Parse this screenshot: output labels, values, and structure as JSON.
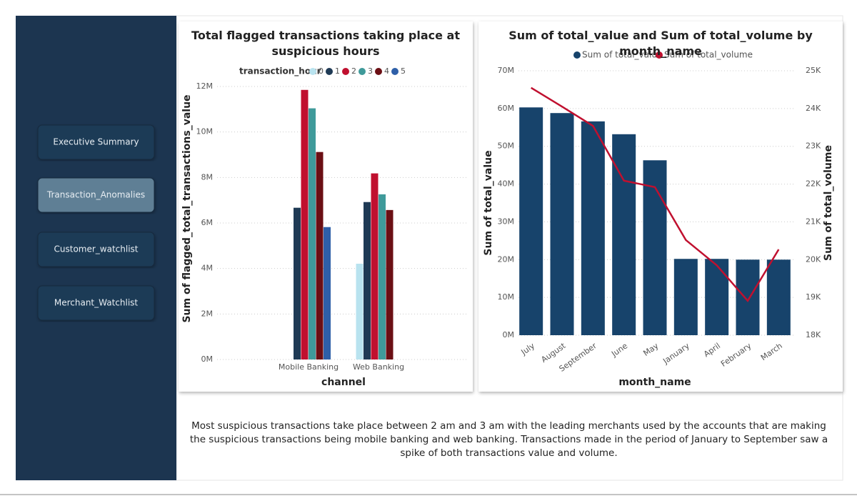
{
  "nav": [
    "Executive Summary",
    "Transaction_Anomalies",
    "Customer_watchlist",
    "Merchant_Watchlist"
  ],
  "active_nav": 1,
  "description": "Most suspicious transactions take place between 2 am and 3 am with the leading merchants used by the accounts that are making the suspicious transactions being mobile banking and web banking. Transactions made in the period of January to September saw a spike of both transactions value and volume.",
  "chart_data": [
    {
      "type": "bar",
      "title": "Total flagged transactions taking place at suspicious hours",
      "legend_title": "transaction_hour",
      "x_label": "channel",
      "y_label": "Sum of flagged_total_transactions_value",
      "categories": [
        "Mobile Banking",
        "Web Banking"
      ],
      "series": [
        {
          "name": "0",
          "color": "#b9e3ef",
          "values": [
            null,
            4210000
          ]
        },
        {
          "name": "1",
          "color": "#1f3a55",
          "values": [
            6670000,
            6920000
          ]
        },
        {
          "name": "2",
          "color": "#c0102f",
          "values": [
            11850000,
            8180000
          ]
        },
        {
          "name": "3",
          "color": "#3f9a9a",
          "values": [
            11040000,
            7260000
          ]
        },
        {
          "name": "4",
          "color": "#6b0f14",
          "values": [
            9120000,
            6570000
          ]
        },
        {
          "name": "5",
          "color": "#2e5fa8",
          "values": [
            5820000,
            null
          ]
        }
      ],
      "ylim": [
        0,
        12000000
      ],
      "yticks": [
        {
          "value": 0,
          "label": "0M"
        },
        {
          "value": 2000000,
          "label": "2M"
        },
        {
          "value": 4000000,
          "label": "4M"
        },
        {
          "value": 6000000,
          "label": "6M"
        },
        {
          "value": 8000000,
          "label": "8M"
        },
        {
          "value": 10000000,
          "label": "10M"
        },
        {
          "value": 12000000,
          "label": "12M"
        }
      ],
      "grid": true
    },
    {
      "type": "combo",
      "title": "Sum of total_value and Sum of total_volume by month_name",
      "x_label": "month_name",
      "y_label": "Sum of total_value",
      "y2_label": "Sum of total_volume",
      "categories": [
        "July",
        "August",
        "September",
        "June",
        "May",
        "January",
        "April",
        "February",
        "March"
      ],
      "series": [
        {
          "name": "Sum of total_value",
          "color": "#17436b",
          "mark": "bar",
          "values": [
            60300000,
            58800000,
            56600000,
            53200000,
            46300000,
            20200000,
            20200000,
            20000000,
            20000000
          ]
        },
        {
          "name": "Sum of total_volume",
          "color": "#c0102f",
          "mark": "line",
          "axis": "y2",
          "values": [
            24550,
            24050,
            23540,
            22090,
            21920,
            20520,
            19850,
            18910,
            20270
          ]
        }
      ],
      "ylim": [
        0,
        70000000
      ],
      "yticks": [
        {
          "value": 0,
          "label": "0M"
        },
        {
          "value": 10000000,
          "label": "10M"
        },
        {
          "value": 20000000,
          "label": "20M"
        },
        {
          "value": 30000000,
          "label": "30M"
        },
        {
          "value": 40000000,
          "label": "40M"
        },
        {
          "value": 50000000,
          "label": "50M"
        },
        {
          "value": 60000000,
          "label": "60M"
        },
        {
          "value": 70000000,
          "label": "70M"
        }
      ],
      "y2lim": [
        18000,
        25000
      ],
      "y2ticks": [
        {
          "value": 18000,
          "label": "18K"
        },
        {
          "value": 19000,
          "label": "19K"
        },
        {
          "value": 20000,
          "label": "20K"
        },
        {
          "value": 21000,
          "label": "21K"
        },
        {
          "value": 22000,
          "label": "22K"
        },
        {
          "value": 23000,
          "label": "23K"
        },
        {
          "value": 24000,
          "label": "24K"
        },
        {
          "value": 25000,
          "label": "25K"
        }
      ],
      "grid": true
    }
  ]
}
